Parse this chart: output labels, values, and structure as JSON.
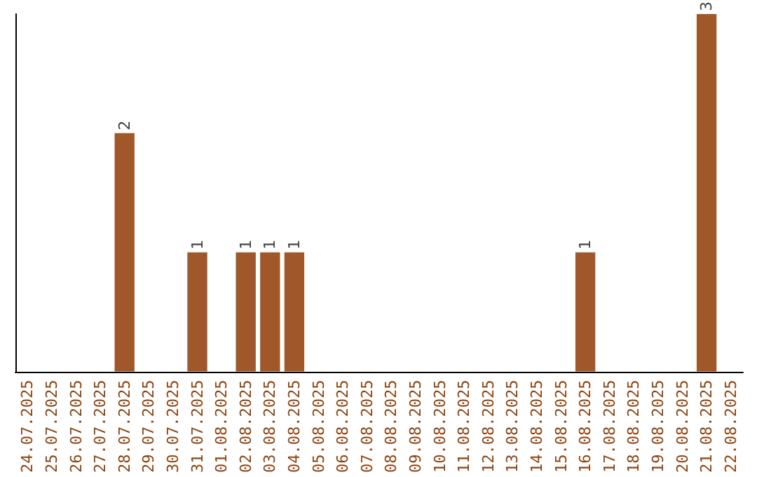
{
  "chart_data": {
    "type": "bar",
    "categories": [
      "24.07.2025",
      "25.07.2025",
      "26.07.2025",
      "27.07.2025",
      "28.07.2025",
      "29.07.2025",
      "30.07.2025",
      "31.07.2025",
      "01.08.2025",
      "02.08.2025",
      "03.08.2025",
      "04.08.2025",
      "05.08.2025",
      "06.08.2025",
      "07.08.2025",
      "08.08.2025",
      "09.08.2025",
      "10.08.2025",
      "11.08.2025",
      "12.08.2025",
      "13.08.2025",
      "14.08.2025",
      "15.08.2025",
      "16.08.2025",
      "17.08.2025",
      "18.08.2025",
      "19.08.2025",
      "20.08.2025",
      "21.08.2025",
      "22.08.2025"
    ],
    "values": [
      0,
      0,
      0,
      0,
      2,
      0,
      0,
      1,
      0,
      1,
      1,
      1,
      0,
      0,
      0,
      0,
      0,
      0,
      0,
      0,
      0,
      0,
      0,
      1,
      0,
      0,
      0,
      0,
      3,
      0
    ],
    "value_labels": [
      null,
      null,
      null,
      null,
      "2",
      null,
      null,
      "1",
      null,
      "1",
      "1",
      "1",
      null,
      null,
      null,
      null,
      null,
      null,
      null,
      null,
      null,
      null,
      null,
      "1",
      null,
      null,
      null,
      null,
      "3",
      null
    ],
    "color": "#a0582a",
    "tick_labels": "x"
  }
}
